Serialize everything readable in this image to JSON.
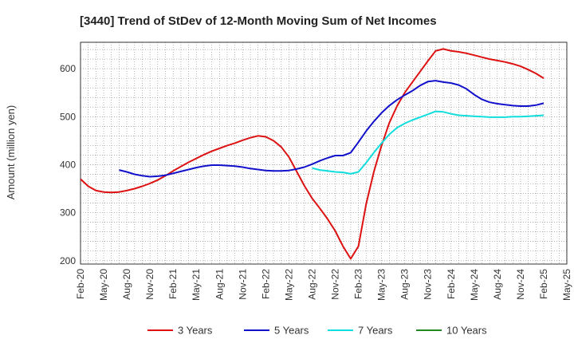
{
  "chart_data": {
    "type": "line",
    "title": "[3440]  Trend of StDev of 12-Month Moving Sum of Net Incomes",
    "xlabel": "",
    "ylabel": "Amount (million yen)",
    "ylim": [
      193,
      655
    ],
    "yticks": [
      200,
      300,
      400,
      500,
      600
    ],
    "xlim": [
      "2020-02",
      "2025-05"
    ],
    "xticks": [
      "Feb-20",
      "May-20",
      "Aug-20",
      "Nov-20",
      "Feb-21",
      "May-21",
      "Aug-21",
      "Nov-21",
      "Feb-22",
      "May-22",
      "Aug-22",
      "Nov-22",
      "Feb-23",
      "May-23",
      "Aug-23",
      "Nov-23",
      "Feb-24",
      "May-24",
      "Aug-24",
      "Nov-24",
      "Feb-25",
      "May-25"
    ],
    "grid": true,
    "legend_position": "bottom",
    "series": [
      {
        "name": "3 Years",
        "color": "#dd1111",
        "points": [
          [
            "2020-02",
            370
          ],
          [
            "2020-03",
            355
          ],
          [
            "2020-04",
            346
          ],
          [
            "2020-05",
            343
          ],
          [
            "2020-06",
            342
          ],
          [
            "2020-07",
            343
          ],
          [
            "2020-08",
            346
          ],
          [
            "2020-09",
            350
          ],
          [
            "2020-10",
            355
          ],
          [
            "2020-11",
            361
          ],
          [
            "2020-12",
            368
          ],
          [
            "2021-01",
            377
          ],
          [
            "2021-02",
            387
          ],
          [
            "2021-03",
            396
          ],
          [
            "2021-04",
            405
          ],
          [
            "2021-05",
            413
          ],
          [
            "2021-06",
            421
          ],
          [
            "2021-07",
            428
          ],
          [
            "2021-08",
            434
          ],
          [
            "2021-09",
            440
          ],
          [
            "2021-10",
            445
          ],
          [
            "2021-11",
            451
          ],
          [
            "2021-12",
            456
          ],
          [
            "2022-01",
            460
          ],
          [
            "2022-02",
            458
          ],
          [
            "2022-03",
            450
          ],
          [
            "2022-04",
            437
          ],
          [
            "2022-05",
            416
          ],
          [
            "2022-06",
            386
          ],
          [
            "2022-07",
            356
          ],
          [
            "2022-08",
            330
          ],
          [
            "2022-09",
            309
          ],
          [
            "2022-10",
            287
          ],
          [
            "2022-11",
            262
          ],
          [
            "2022-12",
            230
          ],
          [
            "2023-01",
            204
          ],
          [
            "2023-02",
            230
          ],
          [
            "2023-03",
            318
          ],
          [
            "2023-04",
            385
          ],
          [
            "2023-05",
            440
          ],
          [
            "2023-06",
            487
          ],
          [
            "2023-07",
            522
          ],
          [
            "2023-08",
            550
          ],
          [
            "2023-09",
            572
          ],
          [
            "2023-10",
            594
          ],
          [
            "2023-11",
            616
          ],
          [
            "2023-12",
            637
          ],
          [
            "2024-01",
            641
          ],
          [
            "2024-02",
            637
          ],
          [
            "2024-03",
            635
          ],
          [
            "2024-04",
            632
          ],
          [
            "2024-05",
            628
          ],
          [
            "2024-06",
            624
          ],
          [
            "2024-07",
            620
          ],
          [
            "2024-08",
            617
          ],
          [
            "2024-09",
            614
          ],
          [
            "2024-10",
            610
          ],
          [
            "2024-11",
            605
          ],
          [
            "2024-12",
            598
          ],
          [
            "2025-01",
            590
          ],
          [
            "2025-02",
            580
          ]
        ]
      },
      {
        "name": "5 Years",
        "color": "#1111cc",
        "points": [
          [
            "2020-07",
            389
          ],
          [
            "2020-08",
            385
          ],
          [
            "2020-09",
            380
          ],
          [
            "2020-10",
            377
          ],
          [
            "2020-11",
            375
          ],
          [
            "2020-12",
            376
          ],
          [
            "2021-01",
            378
          ],
          [
            "2021-02",
            382
          ],
          [
            "2021-03",
            386
          ],
          [
            "2021-04",
            390
          ],
          [
            "2021-05",
            394
          ],
          [
            "2021-06",
            397
          ],
          [
            "2021-07",
            399
          ],
          [
            "2021-08",
            399
          ],
          [
            "2021-09",
            398
          ],
          [
            "2021-10",
            397
          ],
          [
            "2021-11",
            395
          ],
          [
            "2021-12",
            392
          ],
          [
            "2022-01",
            390
          ],
          [
            "2022-02",
            388
          ],
          [
            "2022-03",
            387
          ],
          [
            "2022-04",
            387
          ],
          [
            "2022-05",
            388
          ],
          [
            "2022-06",
            391
          ],
          [
            "2022-07",
            395
          ],
          [
            "2022-08",
            401
          ],
          [
            "2022-09",
            408
          ],
          [
            "2022-10",
            414
          ],
          [
            "2022-11",
            419
          ],
          [
            "2022-12",
            419
          ],
          [
            "2023-01",
            425
          ],
          [
            "2023-02",
            447
          ],
          [
            "2023-03",
            470
          ],
          [
            "2023-04",
            490
          ],
          [
            "2023-05",
            508
          ],
          [
            "2023-06",
            523
          ],
          [
            "2023-07",
            535
          ],
          [
            "2023-08",
            545
          ],
          [
            "2023-09",
            554
          ],
          [
            "2023-10",
            565
          ],
          [
            "2023-11",
            573
          ],
          [
            "2023-12",
            575
          ],
          [
            "2024-01",
            572
          ],
          [
            "2024-02",
            570
          ],
          [
            "2024-03",
            566
          ],
          [
            "2024-04",
            558
          ],
          [
            "2024-05",
            546
          ],
          [
            "2024-06",
            536
          ],
          [
            "2024-07",
            530
          ],
          [
            "2024-08",
            527
          ],
          [
            "2024-09",
            525
          ],
          [
            "2024-10",
            523
          ],
          [
            "2024-11",
            522
          ],
          [
            "2024-12",
            522
          ],
          [
            "2025-01",
            524
          ],
          [
            "2025-02",
            528
          ]
        ]
      },
      {
        "name": "7 Years",
        "color": "#11dddd",
        "points": [
          [
            "2022-08",
            393
          ],
          [
            "2022-09",
            389
          ],
          [
            "2022-10",
            387
          ],
          [
            "2022-11",
            385
          ],
          [
            "2022-12",
            384
          ],
          [
            "2023-01",
            381
          ],
          [
            "2023-02",
            385
          ],
          [
            "2023-03",
            404
          ],
          [
            "2023-04",
            425
          ],
          [
            "2023-05",
            445
          ],
          [
            "2023-06",
            463
          ],
          [
            "2023-07",
            477
          ],
          [
            "2023-08",
            486
          ],
          [
            "2023-09",
            493
          ],
          [
            "2023-10",
            499
          ],
          [
            "2023-11",
            505
          ],
          [
            "2023-12",
            511
          ],
          [
            "2024-01",
            510
          ],
          [
            "2024-02",
            506
          ],
          [
            "2024-03",
            503
          ],
          [
            "2024-04",
            502
          ],
          [
            "2024-05",
            501
          ],
          [
            "2024-06",
            500
          ],
          [
            "2024-07",
            499
          ],
          [
            "2024-08",
            499
          ],
          [
            "2024-09",
            499
          ],
          [
            "2024-10",
            500
          ],
          [
            "2024-11",
            500
          ],
          [
            "2024-12",
            501
          ],
          [
            "2025-01",
            502
          ],
          [
            "2025-02",
            503
          ]
        ]
      },
      {
        "name": "10 Years",
        "color": "#228822",
        "points": []
      }
    ]
  }
}
